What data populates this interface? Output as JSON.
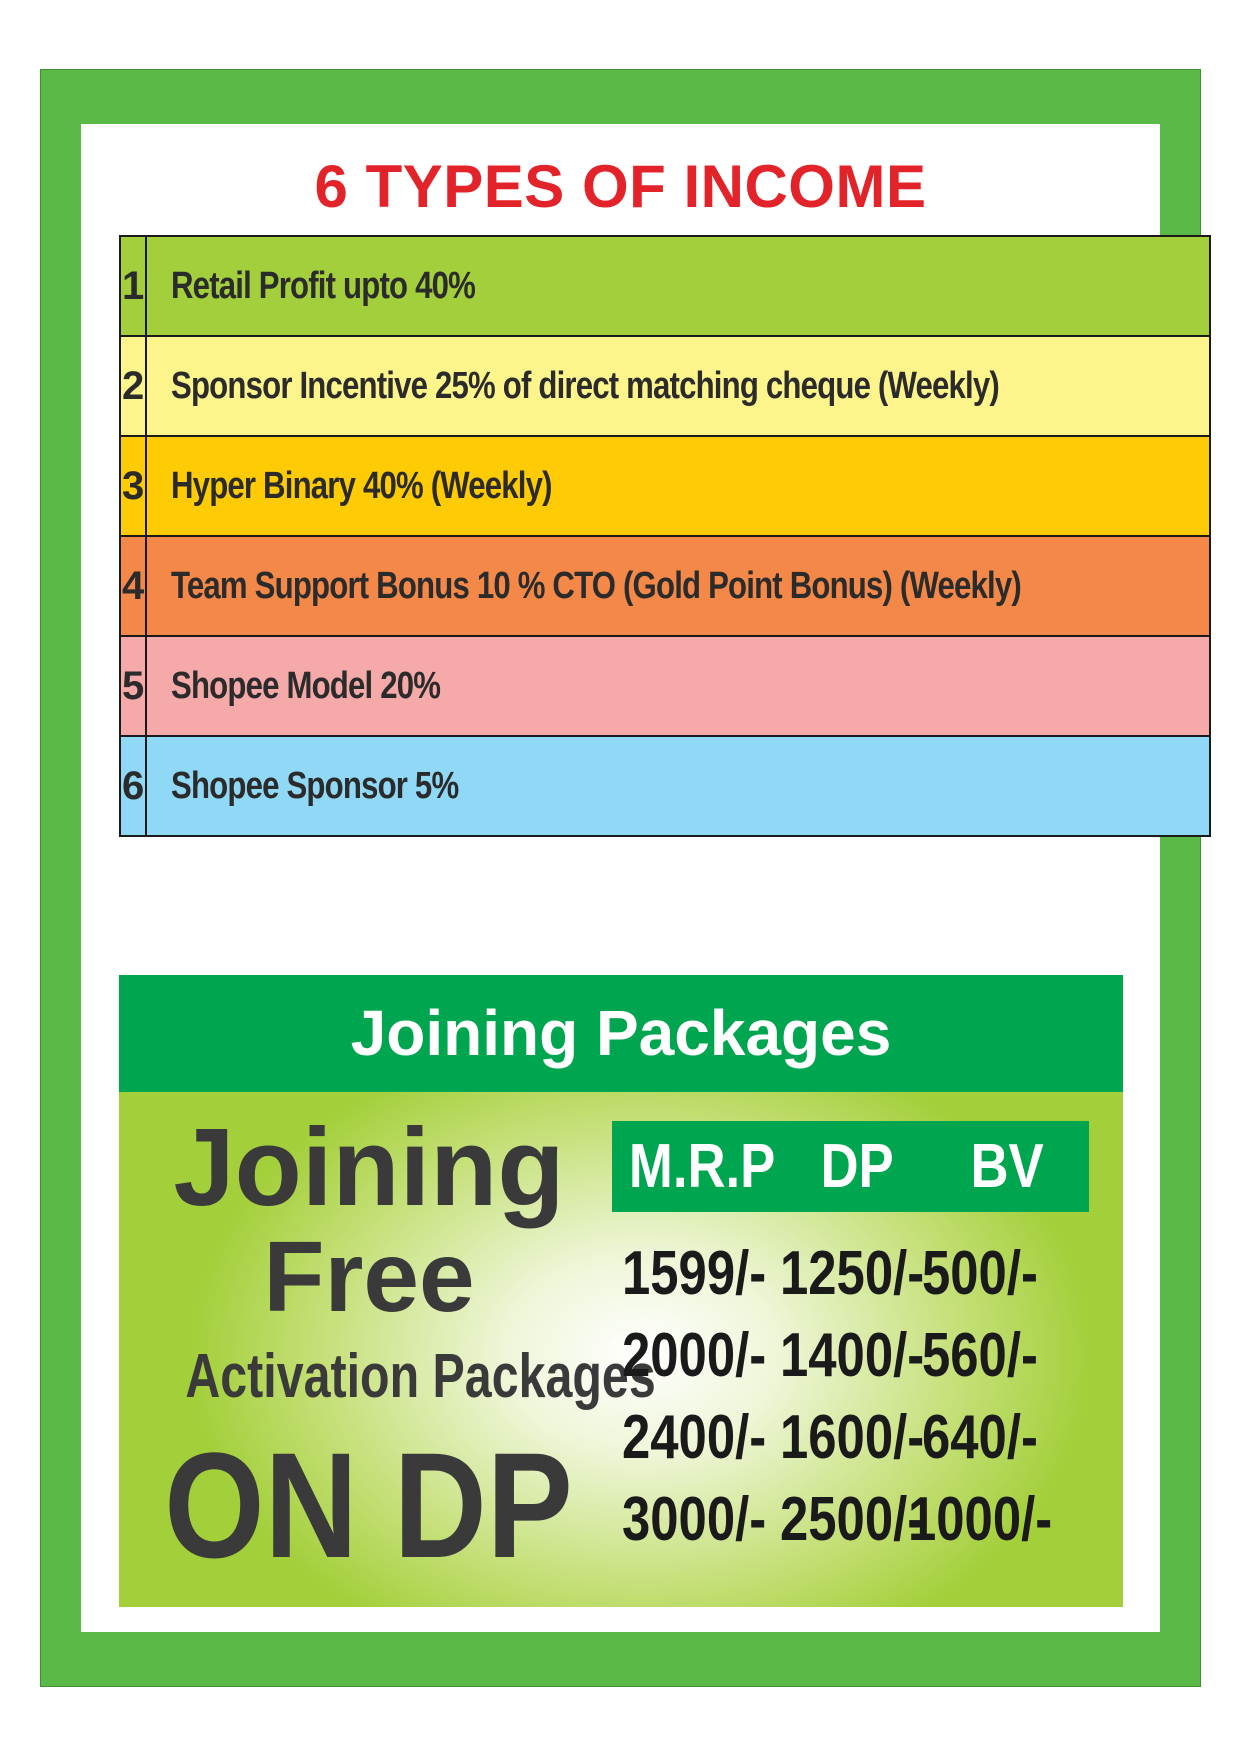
{
  "title": "6 TYPES OF INCOME",
  "income": [
    {
      "num": "1",
      "text": "Retail Profit upto 40%",
      "color": "#a2cf3b"
    },
    {
      "num": "2",
      "text": "Sponsor Incentive 25% of direct matching cheque (Weekly)",
      "color": "#fdf58c"
    },
    {
      "num": "3",
      "text": "Hyper Binary 40% (Weekly)",
      "color": "#ffcb05"
    },
    {
      "num": "4",
      "text": "Team Support Bonus 10 % CTO (Gold Point Bonus) (Weekly)",
      "color": "#f48849"
    },
    {
      "num": "5",
      "text": "Shopee Model 20%",
      "color": "#f6a9a9"
    },
    {
      "num": "6",
      "text": "Shopee Sponsor 5%",
      "color": "#8fd9f7"
    }
  ],
  "packages": {
    "heading": "Joining Packages",
    "joining": "Joining",
    "free": "Free",
    "activation": "Activation Packages",
    "on_dp": "ON DP",
    "columns": [
      "M.R.P",
      "DP",
      "BV"
    ],
    "rows": [
      [
        "1599/-",
        "1250/-",
        "500/-"
      ],
      [
        "2000/-",
        "1400/-",
        "560/-"
      ],
      [
        "2400/-",
        "1600/-",
        "640/-"
      ],
      [
        "3000/-",
        "2500/-",
        "1000/-"
      ]
    ]
  }
}
